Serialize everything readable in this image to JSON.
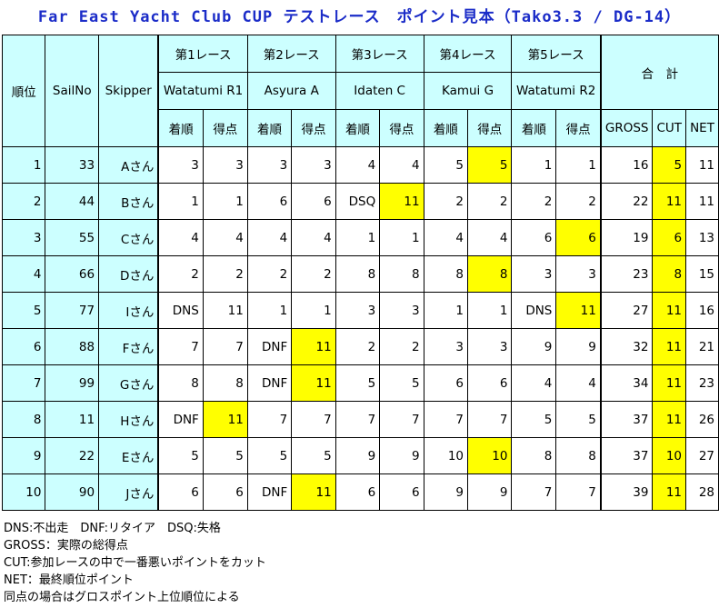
{
  "title": "Far East Yacht Club CUP テストレース　ポイント見本（Tako3.3 / DG-14）",
  "headers": {
    "rank": "順位",
    "sailno": "SailNo",
    "skipper": "Skipper",
    "total": "合　計",
    "finish": "着順",
    "points": "得点",
    "gross": "GROSS",
    "cut": "CUT",
    "net": "NET"
  },
  "races": [
    {
      "label": "第1レース",
      "course": "Watatumi R1"
    },
    {
      "label": "第2レース",
      "course": "Asyura A"
    },
    {
      "label": "第3レース",
      "course": "Idaten C"
    },
    {
      "label": "第4レース",
      "course": "Kamui G"
    },
    {
      "label": "第5レース",
      "course": "Watatumi R2"
    }
  ],
  "rows": [
    {
      "rank": "1",
      "sailno": "33",
      "skipper": "Aさん",
      "cells": [
        [
          "3",
          "3"
        ],
        [
          "3",
          "3"
        ],
        [
          "4",
          "4"
        ],
        [
          "5",
          "5"
        ],
        [
          "1",
          "1"
        ]
      ],
      "cut_race": 3,
      "gross": "16",
      "cut": "5",
      "net": "11"
    },
    {
      "rank": "2",
      "sailno": "44",
      "skipper": "Bさん",
      "cells": [
        [
          "1",
          "1"
        ],
        [
          "6",
          "6"
        ],
        [
          "DSQ",
          "11"
        ],
        [
          "2",
          "2"
        ],
        [
          "2",
          "2"
        ]
      ],
      "cut_race": 2,
      "gross": "22",
      "cut": "11",
      "net": "11"
    },
    {
      "rank": "3",
      "sailno": "55",
      "skipper": "Cさん",
      "cells": [
        [
          "4",
          "4"
        ],
        [
          "4",
          "4"
        ],
        [
          "1",
          "1"
        ],
        [
          "4",
          "4"
        ],
        [
          "6",
          "6"
        ]
      ],
      "cut_race": 4,
      "gross": "19",
      "cut": "6",
      "net": "13"
    },
    {
      "rank": "4",
      "sailno": "66",
      "skipper": "Dさん",
      "cells": [
        [
          "2",
          "2"
        ],
        [
          "2",
          "2"
        ],
        [
          "8",
          "8"
        ],
        [
          "8",
          "8"
        ],
        [
          "3",
          "3"
        ]
      ],
      "cut_race": 3,
      "gross": "23",
      "cut": "8",
      "net": "15"
    },
    {
      "rank": "5",
      "sailno": "77",
      "skipper": "Iさん",
      "cells": [
        [
          "DNS",
          "11"
        ],
        [
          "1",
          "1"
        ],
        [
          "3",
          "3"
        ],
        [
          "1",
          "1"
        ],
        [
          "DNS",
          "11"
        ]
      ],
      "cut_race": 4,
      "gross": "27",
      "cut": "11",
      "net": "16"
    },
    {
      "rank": "6",
      "sailno": "88",
      "skipper": "Fさん",
      "cells": [
        [
          "7",
          "7"
        ],
        [
          "DNF",
          "11"
        ],
        [
          "2",
          "2"
        ],
        [
          "3",
          "3"
        ],
        [
          "9",
          "9"
        ]
      ],
      "cut_race": 1,
      "gross": "32",
      "cut": "11",
      "net": "21"
    },
    {
      "rank": "7",
      "sailno": "99",
      "skipper": "Gさん",
      "cells": [
        [
          "8",
          "8"
        ],
        [
          "DNF",
          "11"
        ],
        [
          "5",
          "5"
        ],
        [
          "6",
          "6"
        ],
        [
          "4",
          "4"
        ]
      ],
      "cut_race": 1,
      "gross": "34",
      "cut": "11",
      "net": "23"
    },
    {
      "rank": "8",
      "sailno": "11",
      "skipper": "Hさん",
      "cells": [
        [
          "DNF",
          "11"
        ],
        [
          "7",
          "7"
        ],
        [
          "7",
          "7"
        ],
        [
          "7",
          "7"
        ],
        [
          "5",
          "5"
        ]
      ],
      "cut_race": 0,
      "gross": "37",
      "cut": "11",
      "net": "26"
    },
    {
      "rank": "9",
      "sailno": "22",
      "skipper": "Eさん",
      "cells": [
        [
          "5",
          "5"
        ],
        [
          "5",
          "5"
        ],
        [
          "9",
          "9"
        ],
        [
          "10",
          "10"
        ],
        [
          "8",
          "8"
        ]
      ],
      "cut_race": 3,
      "gross": "37",
      "cut": "10",
      "net": "27"
    },
    {
      "rank": "10",
      "sailno": "90",
      "skipper": "Jさん",
      "cells": [
        [
          "6",
          "6"
        ],
        [
          "DNF",
          "11"
        ],
        [
          "6",
          "6"
        ],
        [
          "9",
          "9"
        ],
        [
          "7",
          "7"
        ]
      ],
      "cut_race": 1,
      "gross": "39",
      "cut": "11",
      "net": "28"
    }
  ],
  "notes": [
    "DNS:不出走　DNF:リタイア　DSQ:失格",
    "GROSS：実際の総得点",
    "CUT:参加レースの中で一番悪いポイントをカット",
    "NET：最終順位ポイント",
    "同点の場合はグロスポイント上位順位による"
  ],
  "colors": {
    "header_bg": "#ccffff",
    "highlight": "#ffff00",
    "title": "#1b2cc8"
  }
}
